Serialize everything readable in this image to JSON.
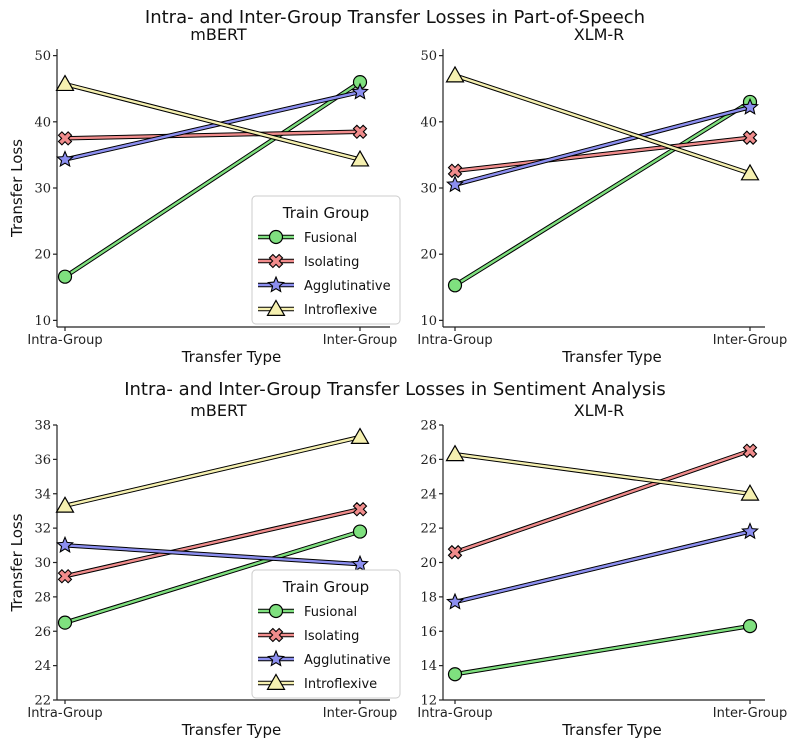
{
  "figure": {
    "top_title": "Intra- and Inter-Group Transfer Losses in Part-of-Speech",
    "bottom_title": "Intra- and Inter-Group Transfer Losses in Sentiment Analysis"
  },
  "legend": {
    "title": "Train Group",
    "entries": [
      "Fusional",
      "Isolating",
      "Agglutinative",
      "Introflexive"
    ]
  },
  "series_styles": {
    "Fusional": {
      "color": "#7fe07f",
      "marker": "circle"
    },
    "Isolating": {
      "color": "#f08c8c",
      "marker": "x"
    },
    "Agglutinative": {
      "color": "#8c8ff0",
      "marker": "star"
    },
    "Introflexive": {
      "color": "#f5f0b0",
      "marker": "triangle"
    }
  },
  "chart_data": [
    {
      "type": "line",
      "title": "mBERT",
      "xlabel": "Transfer Type",
      "ylabel": "Transfer Loss",
      "categories": [
        "Intra-Group",
        "Inter-Group"
      ],
      "ylim": [
        9,
        51
      ],
      "yticks": [
        10,
        20,
        30,
        40,
        50
      ],
      "legend": true,
      "series": [
        {
          "name": "Fusional",
          "values": [
            16.6,
            46.0
          ]
        },
        {
          "name": "Isolating",
          "values": [
            37.5,
            38.5
          ]
        },
        {
          "name": "Agglutinative",
          "values": [
            34.3,
            44.5
          ]
        },
        {
          "name": "Introflexive",
          "values": [
            45.7,
            34.3
          ]
        }
      ]
    },
    {
      "type": "line",
      "title": "XLM-R",
      "xlabel": "Transfer Type",
      "ylabel": "",
      "categories": [
        "Intra-Group",
        "Inter-Group"
      ],
      "ylim": [
        9,
        51
      ],
      "yticks": [
        10,
        20,
        30,
        40,
        50
      ],
      "legend": false,
      "series": [
        {
          "name": "Fusional",
          "values": [
            15.3,
            43.0
          ]
        },
        {
          "name": "Isolating",
          "values": [
            32.6,
            37.6
          ]
        },
        {
          "name": "Agglutinative",
          "values": [
            30.5,
            42.2
          ]
        },
        {
          "name": "Introflexive",
          "values": [
            47.0,
            32.2
          ]
        }
      ]
    },
    {
      "type": "line",
      "title": "mBERT",
      "xlabel": "Transfer Type",
      "ylabel": "Transfer Loss",
      "categories": [
        "Intra-Group",
        "Inter-Group"
      ],
      "ylim": [
        22,
        38
      ],
      "yticks": [
        22,
        24,
        26,
        28,
        30,
        32,
        34,
        36,
        38
      ],
      "legend": true,
      "series": [
        {
          "name": "Fusional",
          "values": [
            26.5,
            31.8
          ]
        },
        {
          "name": "Isolating",
          "values": [
            29.2,
            33.1
          ]
        },
        {
          "name": "Agglutinative",
          "values": [
            31.0,
            29.9
          ]
        },
        {
          "name": "Introflexive",
          "values": [
            33.3,
            37.3
          ]
        }
      ]
    },
    {
      "type": "line",
      "title": "XLM-R",
      "xlabel": "Transfer Type",
      "ylabel": "",
      "categories": [
        "Intra-Group",
        "Inter-Group"
      ],
      "ylim": [
        12,
        28
      ],
      "yticks": [
        12,
        14,
        16,
        18,
        20,
        22,
        24,
        26,
        28
      ],
      "legend": false,
      "series": [
        {
          "name": "Fusional",
          "values": [
            13.5,
            16.3
          ]
        },
        {
          "name": "Isolating",
          "values": [
            20.6,
            26.5
          ]
        },
        {
          "name": "Agglutinative",
          "values": [
            17.7,
            21.8
          ]
        },
        {
          "name": "Introflexive",
          "values": [
            26.3,
            24.0
          ]
        }
      ]
    }
  ]
}
